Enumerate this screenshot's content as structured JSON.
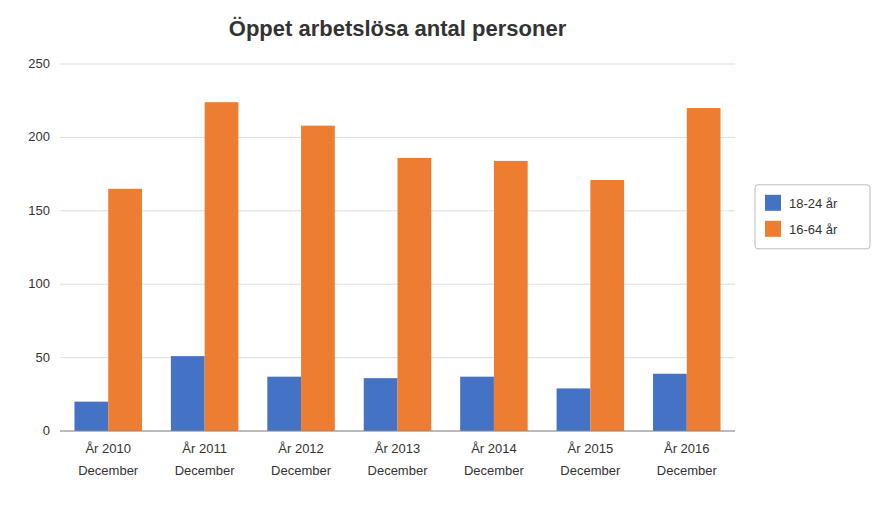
{
  "chart_data": {
    "type": "bar",
    "title": "Öppet arbetslösa antal personer",
    "categories": [
      "År 2010",
      "År 2011",
      "År 2012",
      "År 2013",
      "År 2014",
      "År 2015",
      "År 2016"
    ],
    "annotations": [
      "December",
      "December",
      "December",
      "December",
      "December",
      "December",
      "December"
    ],
    "series": [
      {
        "name": "18-24 år",
        "color": "#4472C4",
        "values": [
          20,
          51,
          37,
          36,
          37,
          29,
          39
        ]
      },
      {
        "name": "16-64 år",
        "color": "#ED7D31",
        "values": [
          165,
          224,
          208,
          186,
          184,
          171,
          220
        ]
      }
    ],
    "ylim": [
      0,
      250
    ],
    "yticks": [
      0,
      50,
      100,
      150,
      200,
      250
    ],
    "grid": true,
    "legend": "right"
  }
}
